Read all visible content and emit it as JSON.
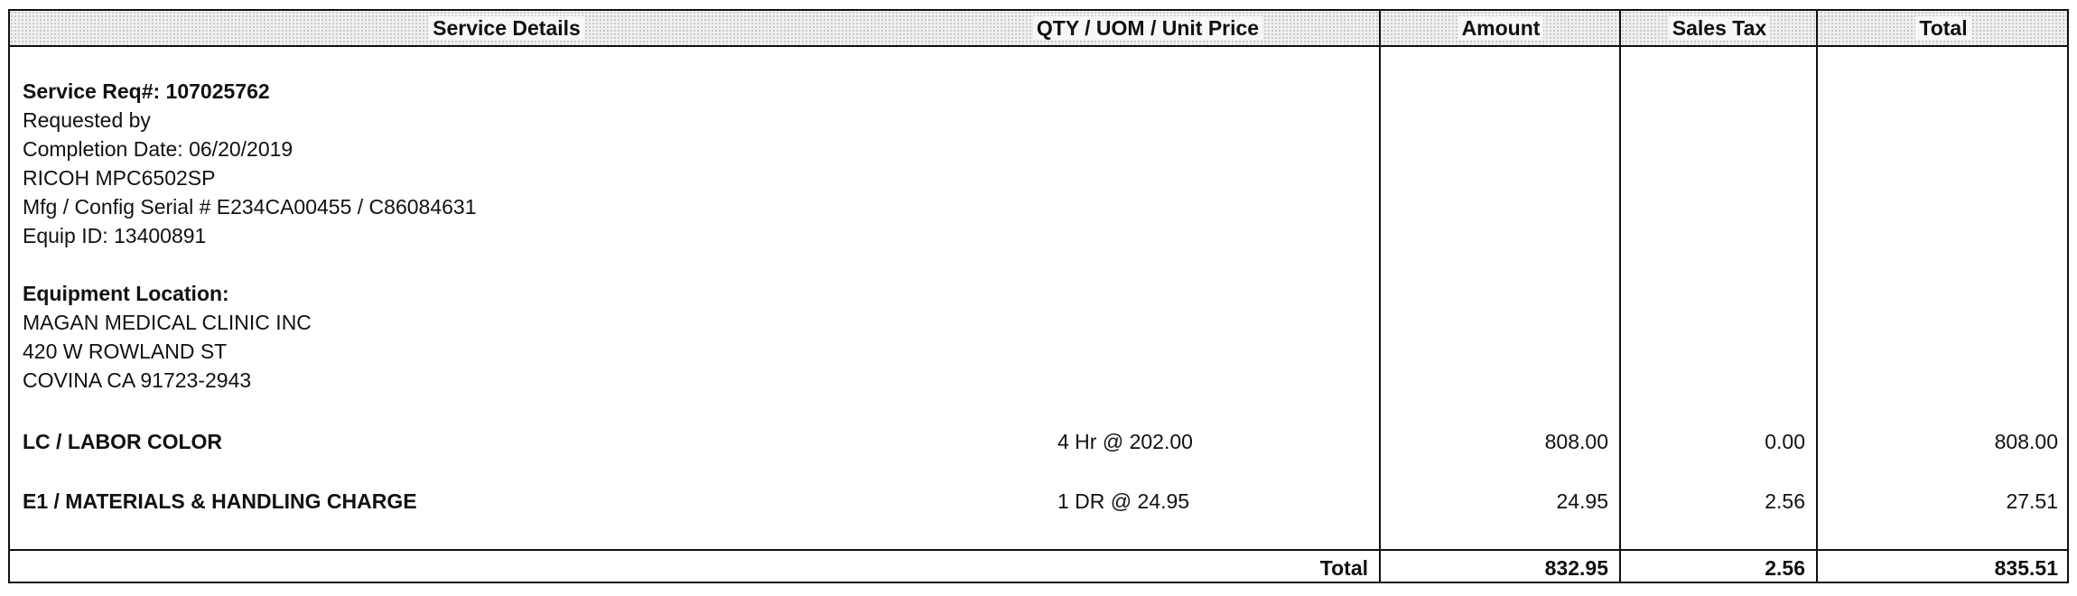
{
  "headers": {
    "service_details": "Service Details",
    "qty": "QTY / UOM / Unit Price",
    "amount": "Amount",
    "sales_tax": "Sales Tax",
    "total": "Total"
  },
  "service": {
    "req_label": "Service Req#: 107025762",
    "requested_by": "Requested by",
    "completion_date": "Completion Date: 06/20/2019",
    "model": "RICOH MPC6502SP",
    "serial": "Mfg / Config Serial # E234CA00455 / C86084631",
    "equip_id": "Equip ID: 13400891"
  },
  "location": {
    "label": "Equipment Location:",
    "name": "MAGAN MEDICAL CLINIC INC",
    "street": "420 W ROWLAND ST",
    "city": "COVINA CA 91723-2943"
  },
  "lines": [
    {
      "description": "LC / LABOR COLOR",
      "qty": "4 Hr @ 202.00",
      "amount": "808.00",
      "tax": "0.00",
      "total": "808.00"
    },
    {
      "description": "E1 / MATERIALS & HANDLING CHARGE",
      "qty": "1 DR @ 24.95",
      "amount": "24.95",
      "tax": "2.56",
      "total": "27.51"
    }
  ],
  "totals": {
    "label": "Total",
    "amount": "832.95",
    "tax": "2.56",
    "total": "835.51"
  }
}
